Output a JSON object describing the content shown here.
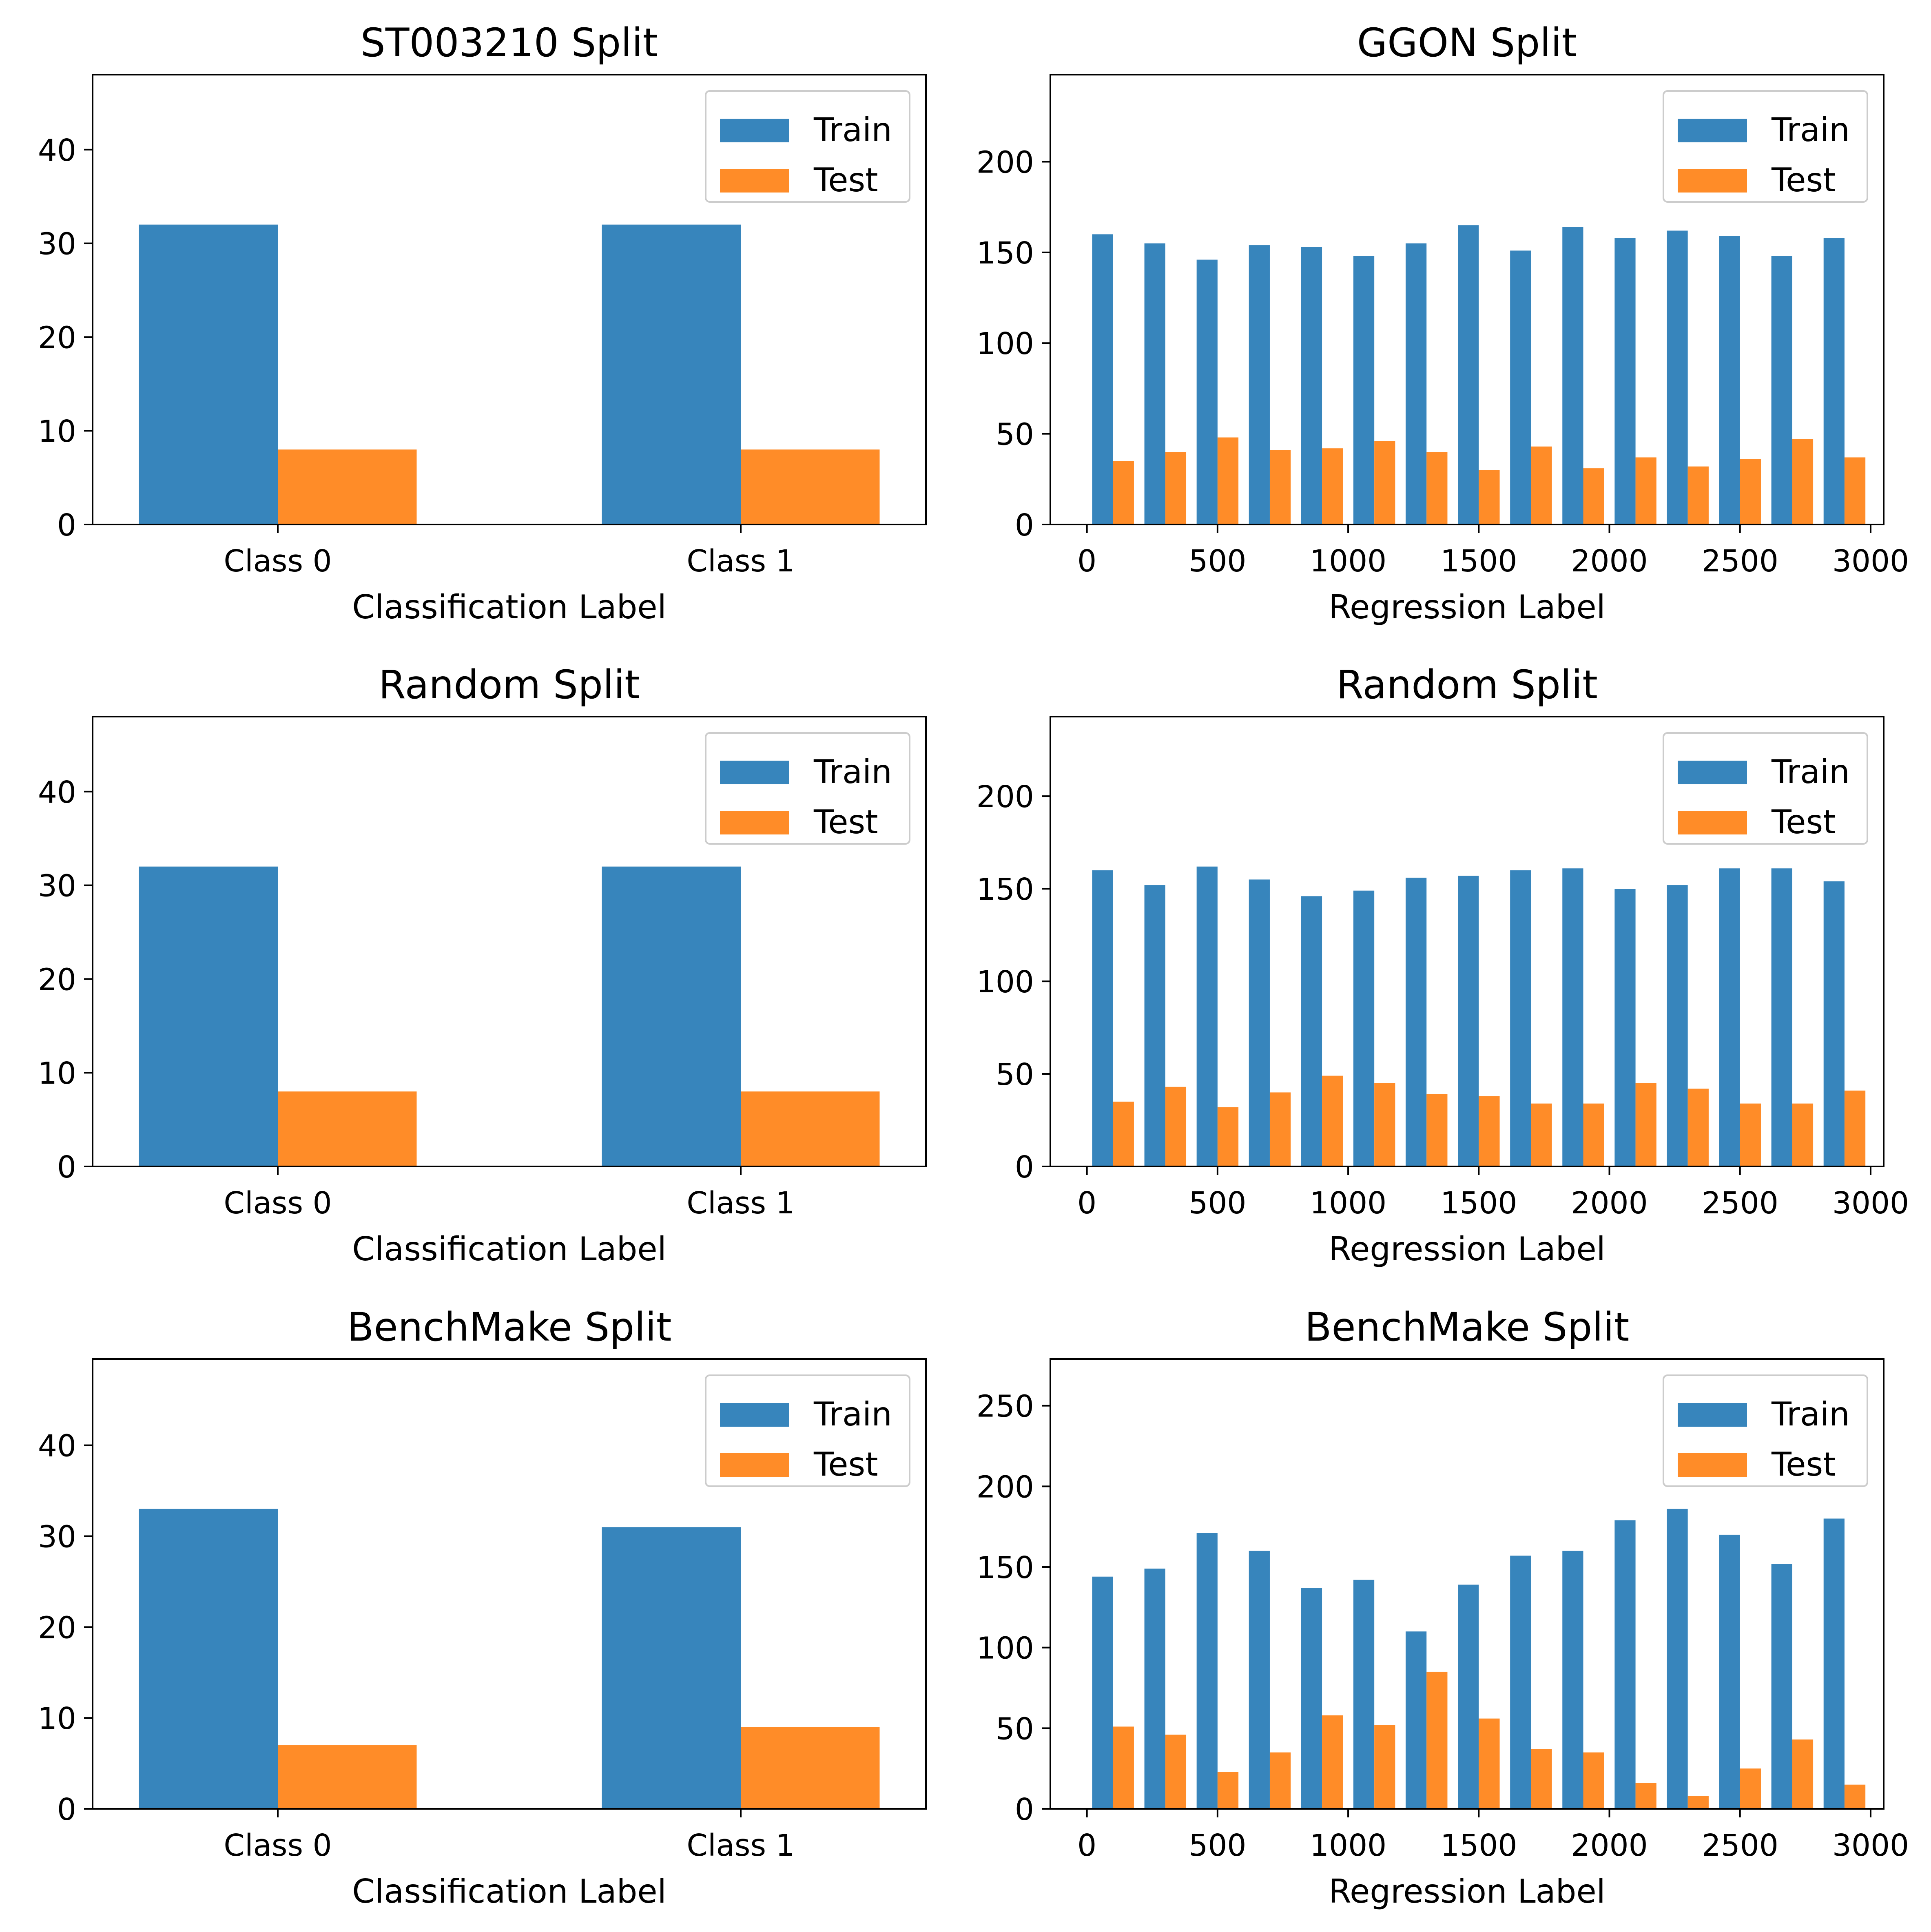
{
  "colors": {
    "train": "#3785bc",
    "test": "#ff8c28"
  },
  "chart_data": [
    {
      "type": "bar",
      "title": "ST003210 Split",
      "xlabel": "Classification Label",
      "ylabel": "",
      "categories": [
        "Class 0",
        "Class 1"
      ],
      "ylim": [
        0,
        48
      ],
      "yticks": [
        0,
        10,
        20,
        30,
        40
      ],
      "legend_position": "top-right",
      "series": [
        {
          "name": "Train",
          "values": [
            32,
            32
          ]
        },
        {
          "name": "Test",
          "values": [
            8,
            8
          ]
        }
      ]
    },
    {
      "type": "bar",
      "title": "GGON Split",
      "xlabel": "Regression Label",
      "ylabel": "",
      "bin_centers": [
        100,
        300,
        500,
        700,
        900,
        1100,
        1300,
        1500,
        1700,
        1900,
        2100,
        2300,
        2500,
        2700,
        2900
      ],
      "bin_width": 200,
      "xlim": [
        -140,
        3050
      ],
      "xticks": [
        0,
        500,
        1000,
        1500,
        2000,
        2500,
        3000
      ],
      "ylim": [
        0,
        248
      ],
      "yticks": [
        0,
        50,
        100,
        150,
        200
      ],
      "legend_position": "top-right",
      "series": [
        {
          "name": "Train",
          "values": [
            160,
            155,
            146,
            154,
            153,
            148,
            155,
            165,
            151,
            164,
            158,
            162,
            159,
            148,
            158
          ]
        },
        {
          "name": "Test",
          "values": [
            35,
            40,
            48,
            41,
            42,
            46,
            40,
            30,
            43,
            31,
            37,
            32,
            36,
            47,
            37
          ]
        }
      ]
    },
    {
      "type": "bar",
      "title": "Random Split",
      "xlabel": "Classification Label",
      "ylabel": "",
      "categories": [
        "Class 0",
        "Class 1"
      ],
      "ylim": [
        0,
        48
      ],
      "yticks": [
        0,
        10,
        20,
        30,
        40
      ],
      "legend_position": "top-right",
      "series": [
        {
          "name": "Train",
          "values": [
            32,
            32
          ]
        },
        {
          "name": "Test",
          "values": [
            8,
            8
          ]
        }
      ]
    },
    {
      "type": "bar",
      "title": "Random Split",
      "xlabel": "Regression Label",
      "ylabel": "",
      "bin_centers": [
        100,
        300,
        500,
        700,
        900,
        1100,
        1300,
        1500,
        1700,
        1900,
        2100,
        2300,
        2500,
        2700,
        2900
      ],
      "bin_width": 200,
      "xlim": [
        -140,
        3050
      ],
      "xticks": [
        0,
        500,
        1000,
        1500,
        2000,
        2500,
        3000
      ],
      "ylim": [
        0,
        243
      ],
      "yticks": [
        0,
        50,
        100,
        150,
        200
      ],
      "legend_position": "top-right",
      "series": [
        {
          "name": "Train",
          "values": [
            160,
            152,
            162,
            155,
            146,
            149,
            156,
            157,
            160,
            161,
            150,
            152,
            161,
            161,
            154
          ]
        },
        {
          "name": "Test",
          "values": [
            35,
            43,
            32,
            40,
            49,
            45,
            39,
            38,
            34,
            34,
            45,
            42,
            34,
            34,
            41
          ]
        }
      ]
    },
    {
      "type": "bar",
      "title": "BenchMake Split",
      "xlabel": "Classification Label",
      "ylabel": "",
      "categories": [
        "Class 0",
        "Class 1"
      ],
      "ylim": [
        0,
        49.5
      ],
      "yticks": [
        0,
        10,
        20,
        30,
        40
      ],
      "legend_position": "top-right",
      "series": [
        {
          "name": "Train",
          "values": [
            33,
            31
          ]
        },
        {
          "name": "Test",
          "values": [
            7,
            9
          ]
        }
      ]
    },
    {
      "type": "bar",
      "title": "BenchMake Split",
      "xlabel": "Regression Label",
      "ylabel": "",
      "bin_centers": [
        100,
        300,
        500,
        700,
        900,
        1100,
        1300,
        1500,
        1700,
        1900,
        2100,
        2300,
        2500,
        2700,
        2900
      ],
      "bin_width": 200,
      "xlim": [
        -140,
        3050
      ],
      "xticks": [
        0,
        500,
        1000,
        1500,
        2000,
        2500,
        3000
      ],
      "ylim": [
        0,
        279
      ],
      "yticks": [
        0,
        50,
        100,
        150,
        200,
        250
      ],
      "legend_position": "top-right",
      "series": [
        {
          "name": "Train",
          "values": [
            144,
            149,
            171,
            160,
            137,
            142,
            110,
            139,
            157,
            160,
            179,
            186,
            170,
            152,
            180
          ]
        },
        {
          "name": "Test",
          "values": [
            51,
            46,
            23,
            35,
            58,
            52,
            85,
            56,
            37,
            35,
            16,
            8,
            25,
            43,
            15
          ]
        }
      ]
    }
  ]
}
